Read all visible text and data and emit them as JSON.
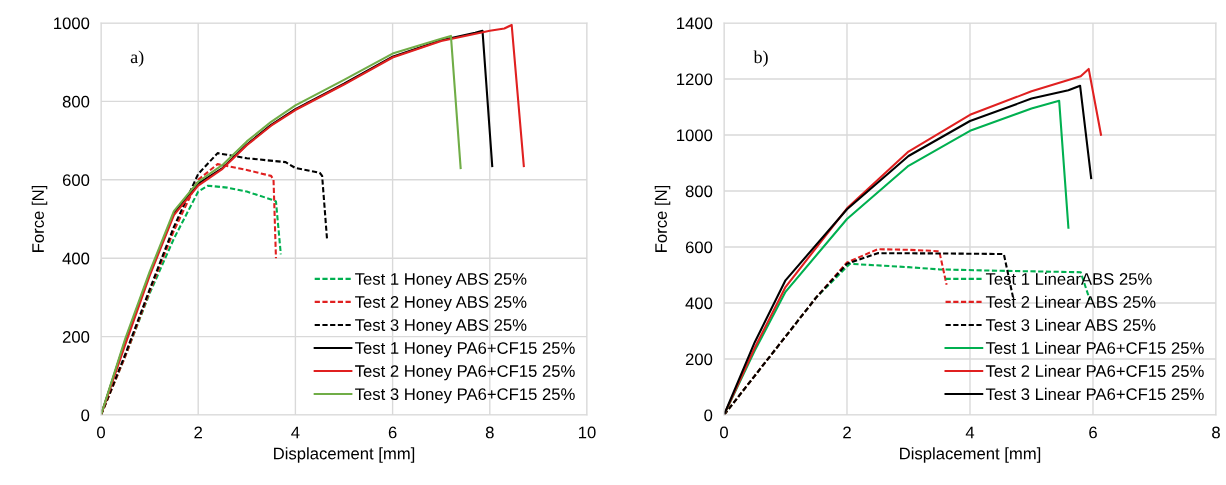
{
  "chart_data": [
    {
      "type": "line",
      "xlabel": "Displacement [mm]",
      "ylabel": "Force [N]",
      "annotations": [
        "a)"
      ],
      "xlim": [
        0,
        10
      ],
      "ylim": [
        0,
        1000
      ],
      "xticks": [
        0,
        2,
        4,
        6,
        8,
        10
      ],
      "yticks": [
        0,
        200,
        400,
        600,
        800,
        1000
      ],
      "grid": true,
      "legend": "bottom right",
      "marker": "none",
      "series": [
        {
          "name": "Test 1 Honey ABS 25%",
          "color": "#00b050",
          "line_style": "dashed",
          "x": [
            0,
            0.5,
            1,
            1.5,
            2,
            2.2,
            2.6,
            3,
            3.5,
            3.6,
            3.7
          ],
          "values": [
            0,
            150,
            310,
            450,
            570,
            585,
            580,
            570,
            550,
            545,
            410
          ]
        },
        {
          "name": "Test 2 Honey ABS 25%",
          "color": "#e02020",
          "line_style": "dashed",
          "x": [
            0,
            0.5,
            1,
            1.5,
            2,
            2.4,
            3,
            3.5,
            3.55,
            3.6
          ],
          "values": [
            0,
            150,
            315,
            470,
            600,
            640,
            625,
            610,
            600,
            400
          ]
        },
        {
          "name": "Test 3 Honey ABS 25%",
          "color": "#000000",
          "line_style": "dashed",
          "x": [
            0,
            0.5,
            1,
            1.5,
            2,
            2.4,
            3,
            3.8,
            4,
            4.5,
            4.55,
            4.65
          ],
          "values": [
            0,
            155,
            320,
            480,
            615,
            668,
            655,
            645,
            630,
            618,
            610,
            450
          ]
        },
        {
          "name": "Test 1 Honey PA6+CF15 25%",
          "color": "#000000",
          "line_style": "solid",
          "x": [
            0,
            0.5,
            1,
            1.5,
            2,
            2.5,
            3,
            3.5,
            4,
            5,
            6,
            7,
            7.7,
            7.85,
            8.05
          ],
          "values": [
            0,
            190,
            360,
            515,
            590,
            630,
            690,
            740,
            780,
            845,
            914,
            956,
            975,
            980,
            635
          ]
        },
        {
          "name": "Test 2 Honey PA6+CF15 25%",
          "color": "#e02020",
          "line_style": "solid",
          "x": [
            0,
            0.5,
            1,
            1.5,
            2,
            2.5,
            3,
            3.5,
            4,
            5,
            6,
            7,
            8,
            8.3,
            8.45,
            8.7
          ],
          "values": [
            0,
            180,
            355,
            510,
            585,
            628,
            688,
            738,
            778,
            843,
            912,
            954,
            980,
            986,
            995,
            635
          ]
        },
        {
          "name": "Test 3 Honey PA6+CF15 25%",
          "color": "#70ad47",
          "line_style": "solid",
          "x": [
            0,
            0.5,
            1,
            1.5,
            2,
            2.5,
            3,
            3.5,
            4,
            5,
            6,
            7,
            7.2,
            7.4
          ],
          "values": [
            0,
            195,
            365,
            520,
            595,
            638,
            698,
            748,
            790,
            855,
            922,
            960,
            967,
            630
          ]
        }
      ]
    },
    {
      "type": "line",
      "xlabel": "Displacement [mm]",
      "ylabel": "Force [N]",
      "annotations": [
        "b)"
      ],
      "xlim": [
        0,
        8
      ],
      "ylim": [
        0,
        1400
      ],
      "xticks": [
        0,
        2,
        4,
        6,
        8
      ],
      "yticks": [
        0,
        200,
        400,
        600,
        800,
        1000,
        1200,
        1400
      ],
      "grid": true,
      "legend": "bottom right",
      "marker": "none",
      "series": [
        {
          "name": "Test 1 LinearABS 25%",
          "color": "#00b050",
          "line_style": "dashed",
          "x": [
            0,
            0.5,
            1,
            1.5,
            2,
            2.05,
            3,
            3.5,
            4.5,
            5.8,
            5.95
          ],
          "values": [
            0,
            140,
            280,
            420,
            530,
            540,
            528,
            520,
            515,
            510,
            410
          ]
        },
        {
          "name": "Test 2 Linear ABS 25%",
          "color": "#e02020",
          "line_style": "dashed",
          "x": [
            0,
            0.5,
            1,
            1.5,
            2,
            2.5,
            3,
            3.5,
            3.62
          ],
          "values": [
            0,
            140,
            280,
            420,
            545,
            592,
            590,
            585,
            465
          ]
        },
        {
          "name": "Test 3 Linear ABS 25%",
          "color": "#000000",
          "line_style": "dashed",
          "x": [
            0,
            0.5,
            1,
            1.5,
            2,
            2.5,
            3.5,
            4.55,
            4.7
          ],
          "values": [
            0,
            140,
            280,
            420,
            540,
            578,
            577,
            575,
            420
          ]
        },
        {
          "name": "Test 1 Linear PA6+CF15 25%",
          "color": "#00b050",
          "line_style": "solid",
          "x": [
            0,
            0.5,
            1,
            2,
            3,
            4,
            5,
            5.45,
            5.6
          ],
          "values": [
            0,
            230,
            440,
            700,
            890,
            1015,
            1095,
            1122,
            669
          ]
        },
        {
          "name": "Test 2 Linear PA6+CF15 25%",
          "color": "#e02020",
          "line_style": "solid",
          "x": [
            0,
            0.5,
            1,
            2,
            3,
            4,
            5,
            5.8,
            5.93,
            6.13
          ],
          "values": [
            0,
            240,
            457,
            738,
            941,
            1072,
            1156,
            1210,
            1236,
            1001
          ]
        },
        {
          "name": "Test 3 Linear PA6+CF15 25%",
          "color": "#000000",
          "line_style": "solid",
          "x": [
            0,
            0.5,
            1,
            2,
            3,
            4,
            5,
            5.6,
            5.79,
            5.97
          ],
          "values": [
            0,
            260,
            481,
            735,
            925,
            1050,
            1130,
            1160,
            1176,
            846
          ]
        }
      ]
    }
  ]
}
